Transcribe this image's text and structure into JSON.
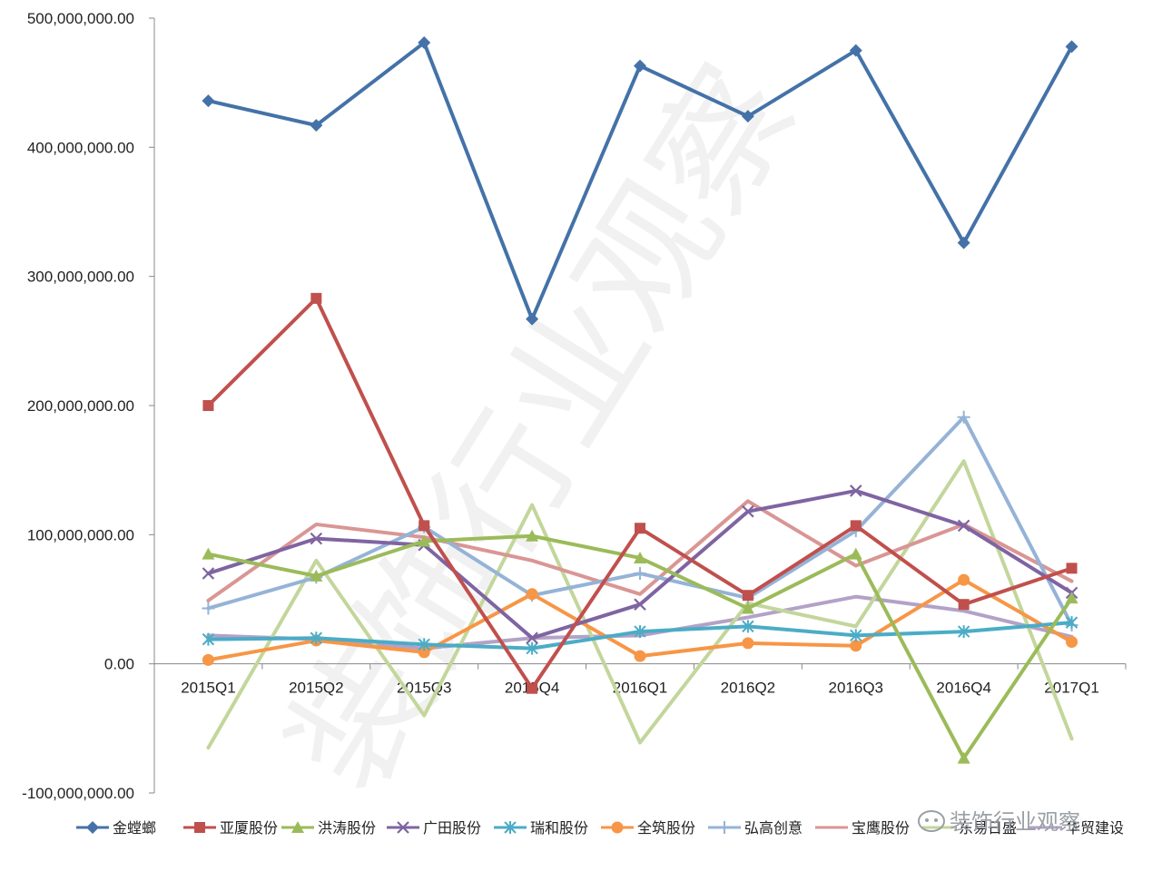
{
  "chart_data": {
    "type": "line",
    "title": "",
    "xlabel": "",
    "ylabel": "",
    "categories": [
      "2015Q1",
      "2015Q2",
      "2015Q3",
      "2015Q4",
      "2016Q1",
      "2016Q2",
      "2016Q3",
      "2016Q4",
      "2017Q1"
    ],
    "ylim": [
      -100000000,
      500000000
    ],
    "yticks": [
      -100000000,
      0,
      100000000,
      200000000,
      300000000,
      400000000,
      500000000
    ],
    "ytick_labels": [
      "-100,000,000.00",
      "0.00",
      "100,000,000.00",
      "200,000,000.00",
      "300,000,000.00",
      "400,000,000.00",
      "500,000,000.00"
    ],
    "grid": false,
    "legend_position": "bottom",
    "series": [
      {
        "name": "金螳螂",
        "color": "#4472a8",
        "marker": "diamond",
        "values": [
          436000000,
          417000000,
          481000000,
          267000000,
          463000000,
          424000000,
          475000000,
          326000000,
          478000000
        ]
      },
      {
        "name": "亚厦股份",
        "color": "#c0504d",
        "marker": "square",
        "values": [
          200000000,
          283000000,
          107000000,
          -19000000,
          105000000,
          53000000,
          107000000,
          46000000,
          74000000
        ]
      },
      {
        "name": "洪涛股份",
        "color": "#9bbb59",
        "marker": "triangle",
        "values": [
          85000000,
          68000000,
          95000000,
          99000000,
          82000000,
          43000000,
          85000000,
          -73000000,
          51000000
        ]
      },
      {
        "name": "广田股份",
        "color": "#7f64a2",
        "marker": "x",
        "values": [
          70000000,
          97000000,
          92000000,
          20000000,
          46000000,
          118000000,
          134000000,
          107000000,
          55000000
        ]
      },
      {
        "name": "瑞和股份",
        "color": "#4bacc6",
        "marker": "star",
        "values": [
          19000000,
          20000000,
          15000000,
          12000000,
          25000000,
          29000000,
          22000000,
          25000000,
          32000000
        ]
      },
      {
        "name": "全筑股份",
        "color": "#f79646",
        "marker": "circle",
        "values": [
          3000000,
          18000000,
          9000000,
          54000000,
          6000000,
          16000000,
          14000000,
          65000000,
          17000000
        ]
      },
      {
        "name": "弘高创意",
        "color": "#95b3d7",
        "marker": "plus",
        "values": [
          43000000,
          67000000,
          106000000,
          53000000,
          70000000,
          51000000,
          103000000,
          191000000,
          30000000
        ]
      },
      {
        "name": "宝鹰股份",
        "color": "#d99694",
        "marker": "none",
        "values": [
          49000000,
          108000000,
          98000000,
          80000000,
          54000000,
          126000000,
          76000000,
          108000000,
          64000000
        ]
      },
      {
        "name": "东易日盛",
        "color": "#c3d69b",
        "marker": "none",
        "values": [
          -65000000,
          80000000,
          -40000000,
          123000000,
          -61000000,
          47000000,
          29000000,
          157000000,
          -58000000
        ]
      },
      {
        "name": "华贸建设",
        "color": "#b3a2c7",
        "marker": "none",
        "values": [
          22000000,
          19000000,
          12000000,
          20000000,
          22000000,
          36000000,
          52000000,
          41000000,
          21000000
        ]
      }
    ]
  },
  "watermark": "装饰行业观察",
  "logo_text": "装饰行业观察"
}
